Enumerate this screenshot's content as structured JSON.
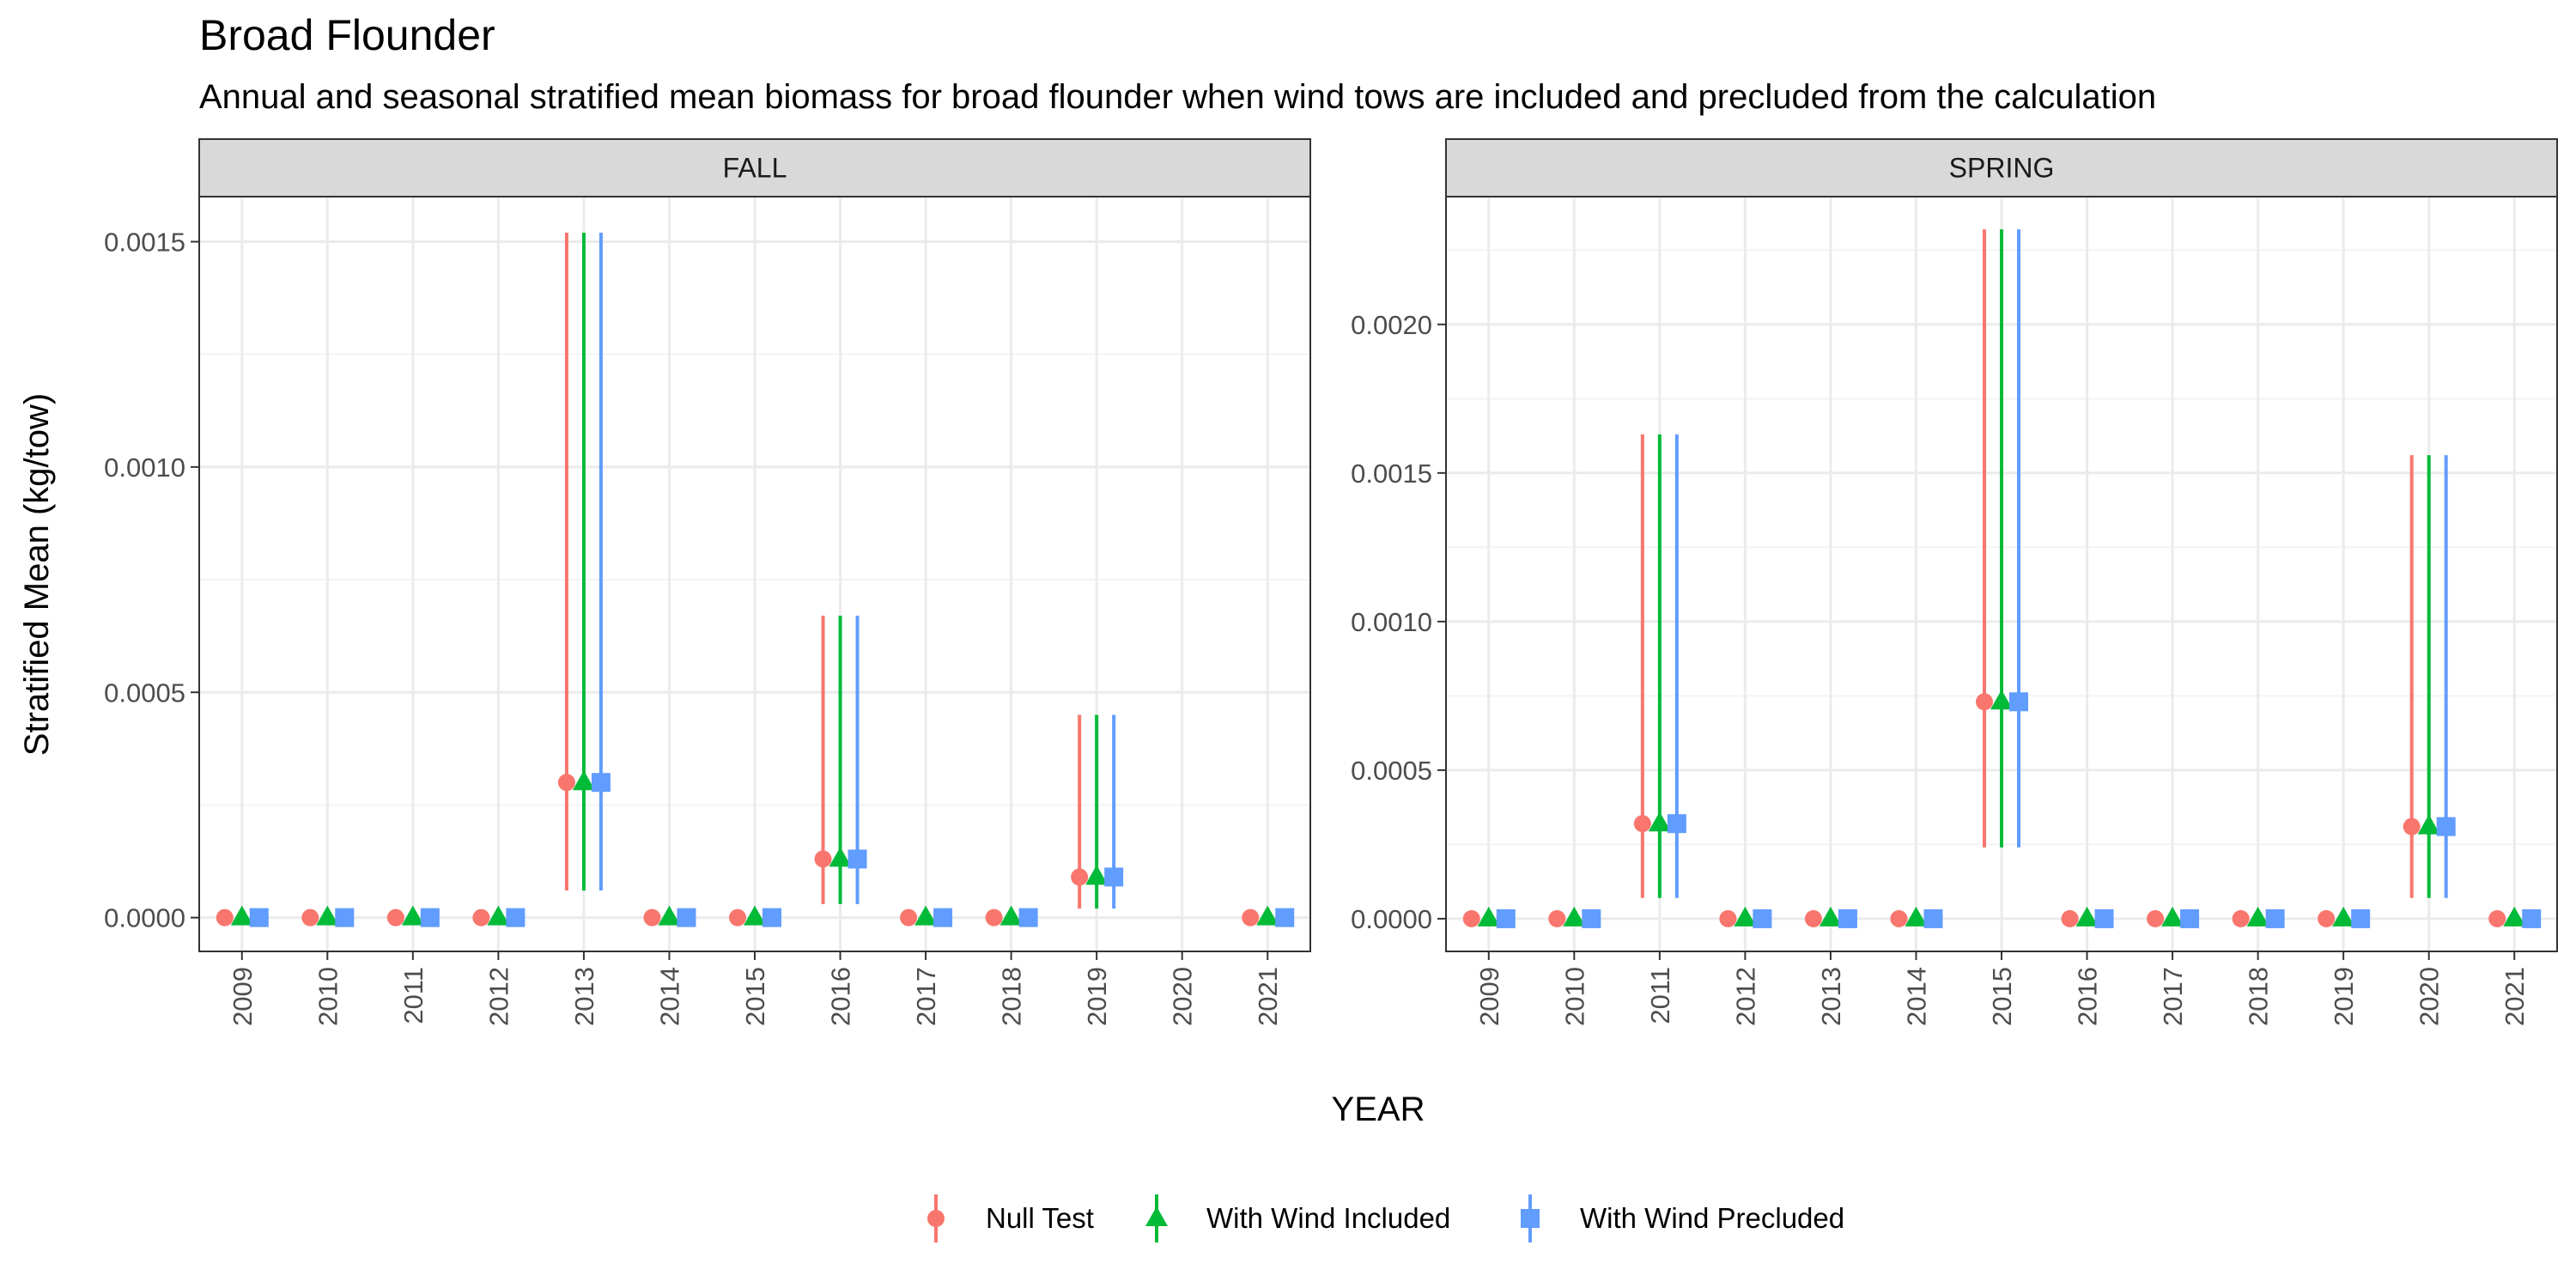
{
  "chart_data": {
    "type": "errorbar-dot",
    "title": "Broad Flounder",
    "subtitle": "Annual and seasonal stratified mean biomass for broad flounder when wind tows are included and precluded from the calculation",
    "xlabel": "YEAR",
    "ylabel": "Stratified Mean (kg/tow)",
    "categories": [
      "2009",
      "2010",
      "2011",
      "2012",
      "2013",
      "2014",
      "2015",
      "2016",
      "2017",
      "2018",
      "2019",
      "2020",
      "2021"
    ],
    "legend": {
      "position": "bottom",
      "entries": [
        {
          "name": "Null Test",
          "shape": "circle",
          "color": "#F8766D"
        },
        {
          "name": "With Wind Included",
          "shape": "triangle",
          "color": "#00BA38"
        },
        {
          "name": "With Wind Precluded",
          "shape": "square",
          "color": "#619CFF"
        }
      ]
    },
    "panels": [
      {
        "name": "FALL",
        "ylim": [
          -7.5e-05,
          0.0016
        ],
        "yticks": [
          0,
          0.0005,
          0.001,
          0.0015
        ],
        "ytick_labels": [
          "0.0000",
          "0.0005",
          "0.0010",
          "0.0015"
        ],
        "points": [
          {
            "year": "2009",
            "mean": 0.0,
            "lo": null,
            "hi": null
          },
          {
            "year": "2010",
            "mean": 0.0,
            "lo": null,
            "hi": null
          },
          {
            "year": "2011",
            "mean": 0.0,
            "lo": null,
            "hi": null
          },
          {
            "year": "2012",
            "mean": 0.0,
            "lo": null,
            "hi": null
          },
          {
            "year": "2013",
            "mean": 0.0003,
            "lo": 6e-05,
            "hi": 0.00152
          },
          {
            "year": "2014",
            "mean": 0.0,
            "lo": null,
            "hi": null
          },
          {
            "year": "2015",
            "mean": 0.0,
            "lo": null,
            "hi": null
          },
          {
            "year": "2016",
            "mean": 0.00013,
            "lo": 3e-05,
            "hi": 0.00067
          },
          {
            "year": "2017",
            "mean": 0.0,
            "lo": null,
            "hi": null
          },
          {
            "year": "2018",
            "mean": 0.0,
            "lo": null,
            "hi": null
          },
          {
            "year": "2019",
            "mean": 9e-05,
            "lo": 2e-05,
            "hi": 0.00045
          },
          {
            "year": "2021",
            "mean": 0.0,
            "lo": null,
            "hi": null
          }
        ]
      },
      {
        "name": "SPRING",
        "ylim": [
          -0.00011,
          0.00243
        ],
        "yticks": [
          0,
          0.0005,
          0.001,
          0.0015,
          0.002
        ],
        "ytick_labels": [
          "0.0000",
          "0.0005",
          "0.0010",
          "0.0015",
          "0.0020"
        ],
        "points": [
          {
            "year": "2009",
            "mean": 0.0,
            "lo": null,
            "hi": null
          },
          {
            "year": "2010",
            "mean": 0.0,
            "lo": null,
            "hi": null
          },
          {
            "year": "2011",
            "mean": 0.00032,
            "lo": 7e-05,
            "hi": 0.00163
          },
          {
            "year": "2012",
            "mean": 0.0,
            "lo": null,
            "hi": null
          },
          {
            "year": "2013",
            "mean": 0.0,
            "lo": null,
            "hi": null
          },
          {
            "year": "2014",
            "mean": 0.0,
            "lo": null,
            "hi": null
          },
          {
            "year": "2015",
            "mean": 0.00073,
            "lo": 0.00024,
            "hi": 0.00232
          },
          {
            "year": "2016",
            "mean": 0.0,
            "lo": null,
            "hi": null
          },
          {
            "year": "2017",
            "mean": 0.0,
            "lo": null,
            "hi": null
          },
          {
            "year": "2018",
            "mean": 0.0,
            "lo": null,
            "hi": null
          },
          {
            "year": "2019",
            "mean": 0.0,
            "lo": null,
            "hi": null
          },
          {
            "year": "2020",
            "mean": 0.00031,
            "lo": 7e-05,
            "hi": 0.00156
          },
          {
            "year": "2021",
            "mean": 0.0,
            "lo": null,
            "hi": null
          }
        ]
      }
    ]
  }
}
